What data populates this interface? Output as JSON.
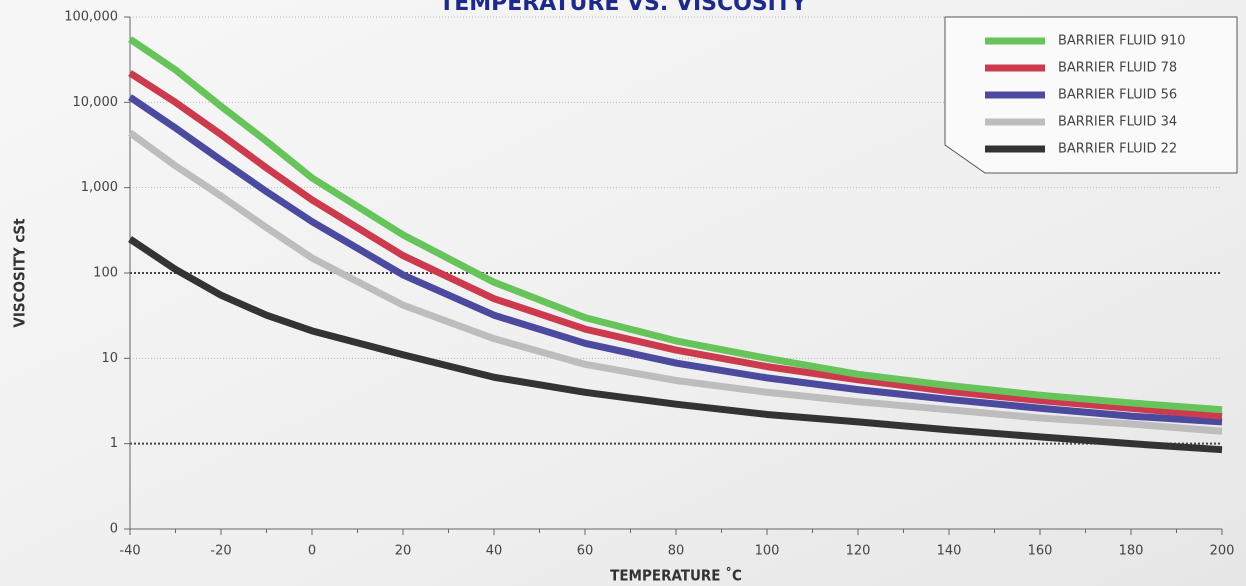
{
  "chart_data": {
    "type": "line",
    "title": "TEMPERATURE VS. VISCOSITY",
    "x_label": "TEMPERATURE ˚C",
    "y_label": "VISCOSITY cSt",
    "x": [
      -40,
      -30,
      -20,
      -10,
      0,
      20,
      40,
      60,
      80,
      100,
      120,
      140,
      160,
      180,
      200
    ],
    "series": [
      {
        "name": "BARRIER FLUID 910",
        "color": "#66c45a",
        "values": [
          55000,
          24000,
          9000,
          3500,
          1300,
          280,
          78,
          30,
          16,
          10,
          6.5,
          4.8,
          3.7,
          3.0,
          2.5
        ]
      },
      {
        "name": "BARRIER FLUID 78",
        "color": "#cc3a4e",
        "values": [
          22000,
          10000,
          4200,
          1700,
          720,
          160,
          50,
          22,
          12.5,
          8,
          5.6,
          4.1,
          3.2,
          2.6,
          2.1
        ]
      },
      {
        "name": "BARRIER FLUID 56",
        "color": "#4b4a9e",
        "values": [
          11500,
          5000,
          2100,
          900,
          400,
          95,
          32,
          15,
          8.8,
          5.9,
          4.3,
          3.3,
          2.6,
          2.1,
          1.8
        ]
      },
      {
        "name": "BARRIER FLUID 34",
        "color": "#bdbdbd",
        "values": [
          4400,
          1800,
          800,
          340,
          150,
          42,
          17,
          8.5,
          5.5,
          4.0,
          3.1,
          2.5,
          2.0,
          1.7,
          1.4
        ]
      },
      {
        "name": "BARRIER FLUID 22",
        "color": "#333333",
        "values": [
          250,
          110,
          55,
          32,
          21,
          11,
          6,
          4,
          2.9,
          2.2,
          1.8,
          1.45,
          1.2,
          1.0,
          0.85
        ]
      }
    ],
    "xlim": [
      -40,
      200
    ],
    "xticks": [
      -40,
      -20,
      0,
      20,
      40,
      60,
      80,
      100,
      120,
      140,
      160,
      180,
      200
    ],
    "ylim": [
      0.1,
      100000
    ],
    "yticks": [
      {
        "value": 0.1,
        "label": "0"
      },
      1,
      10,
      100,
      {
        "value": 1000,
        "label": "1,000"
      },
      {
        "value": 10000,
        "label": "10,000"
      },
      {
        "value": 100000,
        "label": "100,000"
      }
    ],
    "y_log": true,
    "grid": true,
    "emphasized_grid": [
      1,
      100
    ],
    "legend": "top-right"
  }
}
